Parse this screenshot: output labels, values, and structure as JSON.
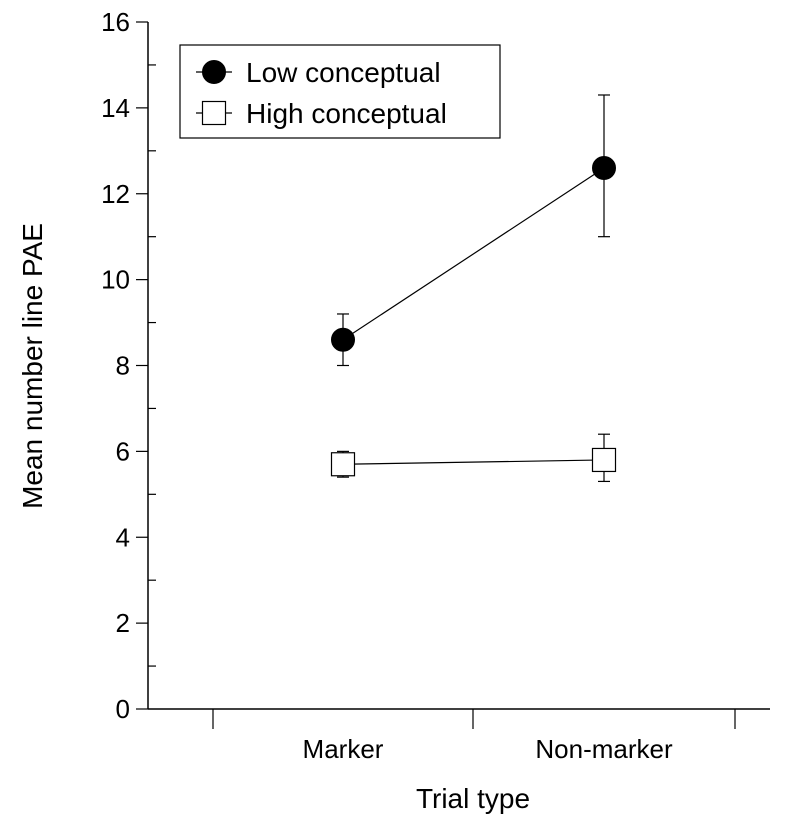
{
  "chart_data": {
    "type": "line",
    "title": "",
    "xlabel": "Trial type",
    "ylabel": "Mean number line PAE",
    "categories": [
      "Marker",
      "Non-marker"
    ],
    "ylim": [
      0,
      16
    ],
    "yticks": [
      0,
      2,
      4,
      6,
      8,
      10,
      12,
      14,
      16
    ],
    "grid": false,
    "legend_position": "top-left",
    "series": [
      {
        "name": "Low conceptual",
        "marker": "filled-circle",
        "values": [
          8.6,
          12.6
        ],
        "err_low": [
          8.0,
          11.0
        ],
        "err_high": [
          9.2,
          14.3
        ]
      },
      {
        "name": "High conceptual",
        "marker": "open-square",
        "values": [
          5.7,
          5.8
        ],
        "err_low": [
          5.4,
          5.3
        ],
        "err_high": [
          6.0,
          6.4
        ]
      }
    ]
  }
}
